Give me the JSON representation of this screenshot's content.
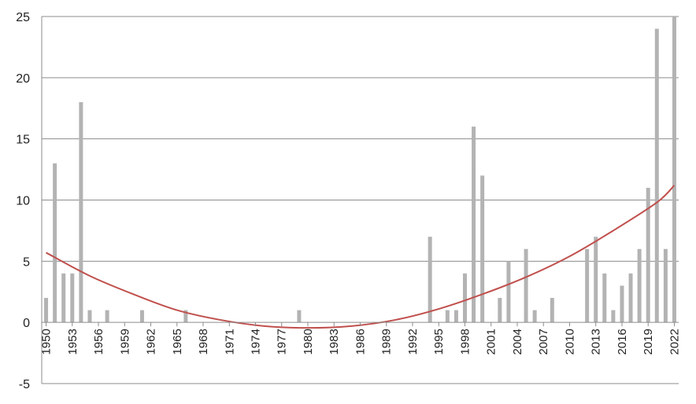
{
  "chart_data": {
    "type": "bar",
    "title": "",
    "xlabel": "",
    "ylabel": "",
    "ylim": [
      -5,
      25
    ],
    "yticks": [
      25,
      20,
      15,
      10,
      5,
      0,
      -5
    ],
    "xtick_labels": [
      "1950",
      "1953",
      "1956",
      "1959",
      "1962",
      "1965",
      "1968",
      "1971",
      "1974",
      "1977",
      "1980",
      "1983",
      "1986",
      "1989",
      "1992",
      "1995",
      "1998",
      "2001",
      "2004",
      "2007",
      "2010",
      "2013",
      "2016",
      "2019",
      "2022"
    ],
    "grid": true,
    "legend": "none",
    "bar_color": "#b3b3b3",
    "trend_color": "#c0504d",
    "categories": [
      1950,
      1951,
      1952,
      1953,
      1954,
      1955,
      1956,
      1957,
      1958,
      1959,
      1960,
      1961,
      1962,
      1963,
      1964,
      1965,
      1966,
      1967,
      1968,
      1969,
      1970,
      1971,
      1972,
      1973,
      1974,
      1975,
      1976,
      1977,
      1978,
      1979,
      1980,
      1981,
      1982,
      1983,
      1984,
      1985,
      1986,
      1987,
      1988,
      1989,
      1990,
      1991,
      1992,
      1993,
      1994,
      1995,
      1996,
      1997,
      1998,
      1999,
      2000,
      2001,
      2002,
      2003,
      2004,
      2005,
      2006,
      2007,
      2008,
      2009,
      2010,
      2011,
      2012,
      2013,
      2014,
      2015,
      2016,
      2017,
      2018,
      2019,
      2020,
      2021,
      2022
    ],
    "values": [
      2,
      13,
      4,
      4,
      18,
      1,
      0,
      1,
      0,
      0,
      0,
      1,
      0,
      0,
      0,
      0,
      1,
      0,
      0,
      0,
      0,
      0,
      0,
      0,
      0,
      0,
      0,
      0,
      0,
      1,
      0,
      0,
      0,
      0,
      0,
      0,
      0,
      0,
      0,
      0,
      0,
      0,
      0,
      0,
      7,
      0,
      1,
      1,
      4,
      16,
      12,
      0,
      2,
      5,
      0,
      6,
      1,
      0,
      2,
      0,
      0,
      0,
      6,
      7,
      4,
      1,
      3,
      4,
      6,
      11,
      24,
      6,
      25
    ],
    "trendline": {
      "type": "polynomial",
      "order": 2,
      "points": [
        {
          "x": 1950,
          "y": 5.7
        },
        {
          "x": 1955,
          "y": 3.8
        },
        {
          "x": 1960,
          "y": 2.3
        },
        {
          "x": 1965,
          "y": 1.0
        },
        {
          "x": 1970,
          "y": 0.2
        },
        {
          "x": 1975,
          "y": -0.3
        },
        {
          "x": 1980,
          "y": -0.45
        },
        {
          "x": 1985,
          "y": -0.3
        },
        {
          "x": 1990,
          "y": 0.2
        },
        {
          "x": 1995,
          "y": 1.1
        },
        {
          "x": 2000,
          "y": 2.3
        },
        {
          "x": 2005,
          "y": 3.7
        },
        {
          "x": 2010,
          "y": 5.4
        },
        {
          "x": 2015,
          "y": 7.5
        },
        {
          "x": 2020,
          "y": 9.8
        },
        {
          "x": 2022,
          "y": 11.2
        }
      ]
    }
  }
}
